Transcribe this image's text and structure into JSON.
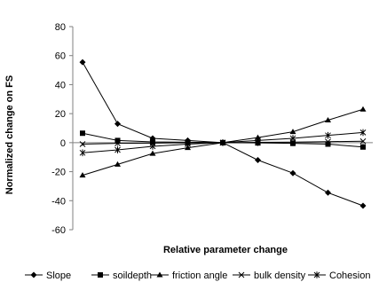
{
  "chart_data": {
    "type": "line",
    "title": "",
    "xlabel": "Relative parameter change",
    "ylabel": "Normalized change on FS",
    "ylim": [
      -60,
      80
    ],
    "y_ticks": [
      80,
      60,
      40,
      20,
      0,
      -20,
      -40,
      -60
    ],
    "x_points": 9,
    "grid": false,
    "legend_position": "bottom",
    "colors": {
      "line": "#000000",
      "axis": "#808080"
    },
    "series": [
      {
        "name": "Slope",
        "marker": "diamond",
        "values": [
          55.5,
          13,
          3,
          1.5,
          0,
          -12,
          -21,
          -34.5,
          -43.5
        ]
      },
      {
        "name": "soildepth",
        "marker": "square",
        "values": [
          6.5,
          1.5,
          0.5,
          0.3,
          0,
          -0.2,
          -0.5,
          -1,
          -3
        ]
      },
      {
        "name": "friction angle",
        "marker": "triangle",
        "values": [
          -22.5,
          -15,
          -7.5,
          -3.5,
          0,
          3.5,
          7.5,
          15.5,
          23
        ]
      },
      {
        "name": "bulk density",
        "marker": "x",
        "values": [
          -1,
          -0.5,
          -0.3,
          -0.1,
          0,
          0.2,
          0.4,
          0.7,
          1
        ]
      },
      {
        "name": "Cohesion",
        "marker": "asterisk",
        "values": [
          -7,
          -5,
          -2.5,
          -1,
          0,
          1.5,
          3,
          5,
          7
        ]
      }
    ]
  }
}
